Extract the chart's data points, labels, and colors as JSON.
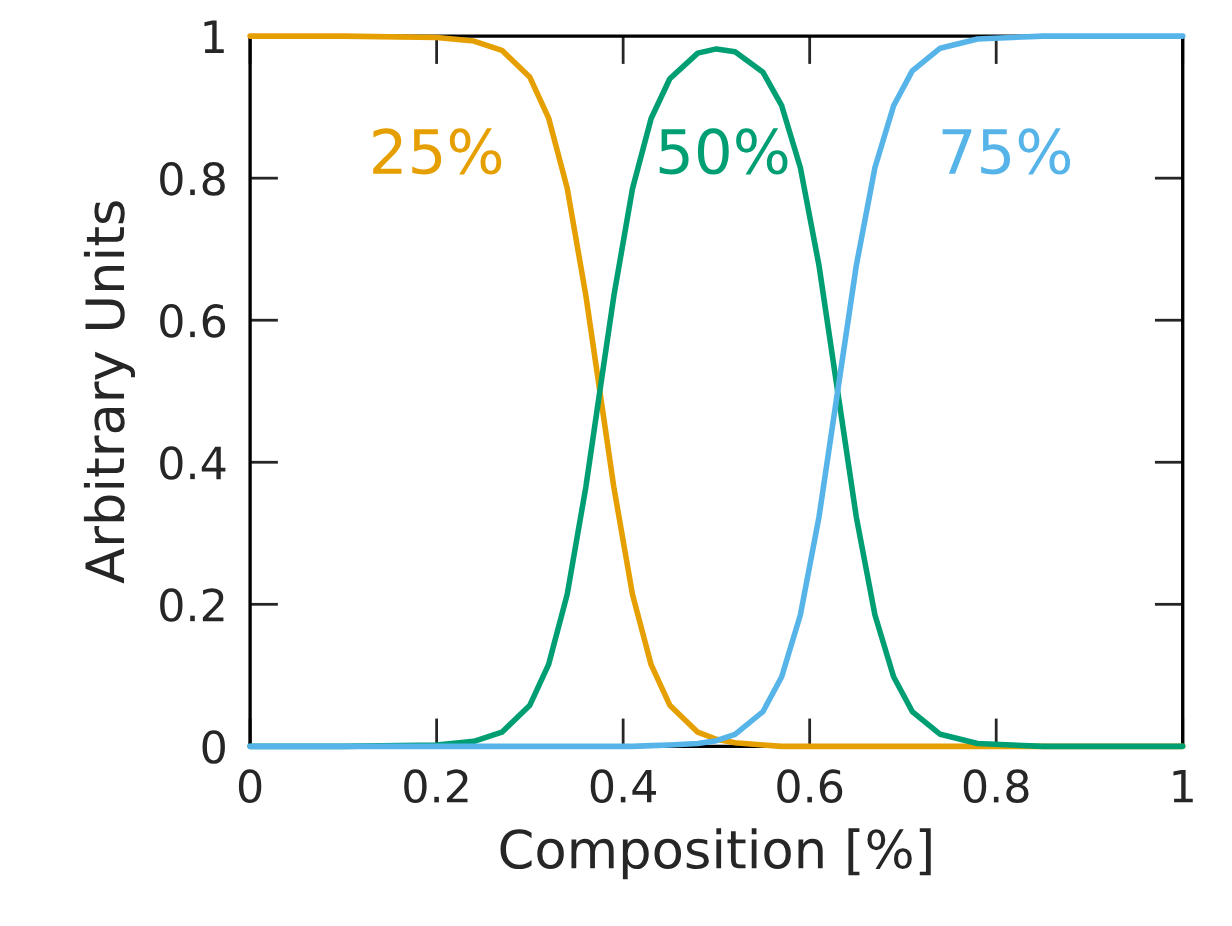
{
  "chart_data": {
    "type": "line",
    "xlabel": "Composition [%]",
    "ylabel": "Arbitrary Units",
    "x": [
      0,
      0.1,
      0.2,
      0.24,
      0.27,
      0.3,
      0.32,
      0.34,
      0.36,
      0.375,
      0.39,
      0.41,
      0.43,
      0.45,
      0.48,
      0.5,
      0.52,
      0.55,
      0.57,
      0.59,
      0.61,
      0.63,
      0.65,
      0.67,
      0.69,
      0.71,
      0.74,
      0.78,
      0.85,
      1.0
    ],
    "series": [
      {
        "name": "25%",
        "color": "#e69f00",
        "values": [
          1,
          1,
          0.998,
          0.993,
          0.98,
          0.942,
          0.885,
          0.786,
          0.635,
          0.5,
          0.365,
          0.214,
          0.115,
          0.058,
          0.02,
          0.01,
          0.005,
          0.002,
          0,
          0,
          0,
          0,
          0,
          0,
          0,
          0,
          0,
          0,
          0,
          0
        ]
      },
      {
        "name": "50%",
        "color": "#009e73",
        "values": [
          0,
          0,
          0.002,
          0.007,
          0.02,
          0.058,
          0.115,
          0.214,
          0.365,
          0.5,
          0.634,
          0.785,
          0.884,
          0.94,
          0.976,
          0.982,
          0.978,
          0.949,
          0.902,
          0.815,
          0.677,
          0.5,
          0.323,
          0.185,
          0.098,
          0.049,
          0.017,
          0.004,
          0,
          0
        ]
      },
      {
        "name": "75%",
        "color": "#56b4e9",
        "values": [
          0,
          0,
          0,
          0,
          0,
          0,
          0,
          0,
          0,
          0,
          0,
          0,
          0.001,
          0.002,
          0.004,
          0.008,
          0.017,
          0.049,
          0.098,
          0.185,
          0.323,
          0.5,
          0.677,
          0.815,
          0.902,
          0.951,
          0.983,
          0.996,
          1,
          1
        ]
      }
    ],
    "xlim": [
      0,
      1
    ],
    "ylim": [
      0,
      1
    ],
    "xticks": [
      0,
      0.2,
      0.4,
      0.6,
      0.8,
      1
    ],
    "yticks": [
      0,
      0.2,
      0.4,
      0.6,
      0.8,
      1
    ],
    "grid": false,
    "legend": false,
    "marker": "none",
    "line_style": "solid"
  }
}
